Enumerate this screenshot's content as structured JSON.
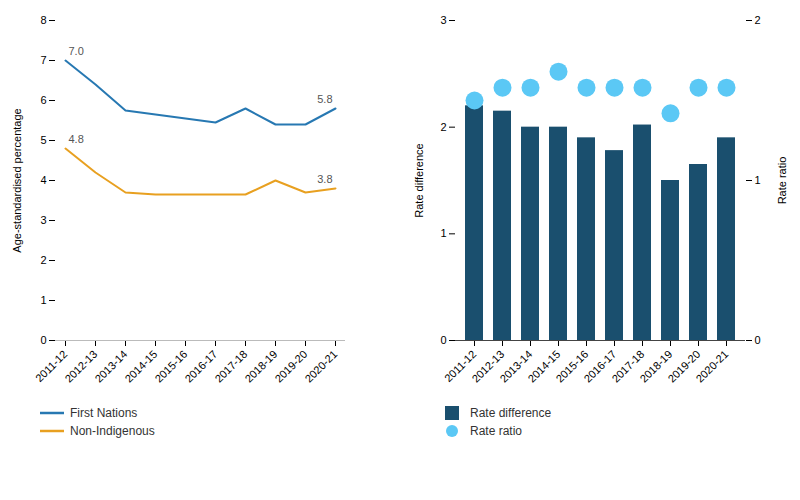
{
  "chart_data": [
    {
      "type": "line",
      "categories": [
        "2011-12",
        "2012-13",
        "2013-14",
        "2014-15",
        "2015-16",
        "2016-17",
        "2017-18",
        "2018-19",
        "2019-20",
        "2020-21"
      ],
      "series": [
        {
          "name": "First Nations",
          "color": "#2778b2",
          "values": [
            7.0,
            6.4,
            5.75,
            5.65,
            5.55,
            5.45,
            5.8,
            5.4,
            5.4,
            5.8
          ]
        },
        {
          "name": "Non-Indigenous",
          "color": "#e8a020",
          "values": [
            4.8,
            4.2,
            3.7,
            3.65,
            3.65,
            3.65,
            3.65,
            4.0,
            3.7,
            3.8
          ]
        }
      ],
      "annotations": [
        {
          "text": "7.0",
          "category": "2011-12",
          "value": 7.0
        },
        {
          "text": "4.8",
          "category": "2011-12",
          "value": 4.8
        },
        {
          "text": "5.8",
          "category": "2020-21",
          "value": 5.8
        },
        {
          "text": "3.8",
          "category": "2020-21",
          "value": 3.8
        }
      ],
      "ylabel": "Age-standardised percentage",
      "ylim": [
        0,
        8
      ],
      "yticks": [
        0,
        1,
        2,
        3,
        4,
        5,
        6,
        7,
        8
      ],
      "grid": false,
      "legend": "lower left"
    },
    {
      "type": "bar",
      "categories": [
        "2011-12",
        "2012-13",
        "2013-14",
        "2014-15",
        "2015-16",
        "2016-17",
        "2017-18",
        "2018-19",
        "2019-20",
        "2020-21"
      ],
      "series": [
        {
          "name": "Rate difference",
          "type": "bar",
          "color": "#1a4f6e",
          "values": [
            2.2,
            2.15,
            2.0,
            2.0,
            1.9,
            1.78,
            2.02,
            1.5,
            1.65,
            1.9
          ]
        },
        {
          "name": "Rate ratio",
          "type": "scatter",
          "axis": "y2",
          "color": "#5bc8f5",
          "values": [
            1.5,
            1.58,
            1.58,
            1.68,
            1.58,
            1.58,
            1.58,
            1.42,
            1.58,
            1.58
          ]
        }
      ],
      "ylabel": "Rate difference",
      "y2label": "Rate ratio",
      "ylim": [
        0,
        3
      ],
      "yticks": [
        0,
        1,
        2,
        3
      ],
      "y2lim": [
        0,
        2
      ],
      "y2ticks": [
        0,
        1,
        2
      ],
      "grid": false,
      "legend": "lower left"
    }
  ]
}
